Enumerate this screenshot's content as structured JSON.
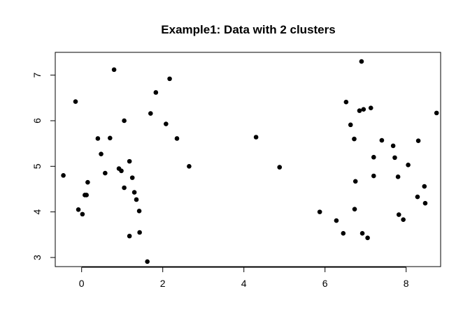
{
  "chart_data": {
    "type": "scatter",
    "title": "Example1: Data with 2 clusters",
    "xlabel": "",
    "ylabel": "",
    "xlim": [
      -0.65,
      8.85
    ],
    "ylim": [
      2.8,
      7.5
    ],
    "xticks": [
      0,
      2,
      4,
      6,
      8
    ],
    "yticks": [
      3,
      4,
      5,
      6,
      7
    ],
    "grid": false,
    "point_color": "#000000",
    "points": [
      {
        "x": -0.45,
        "y": 4.8
      },
      {
        "x": -0.15,
        "y": 6.42
      },
      {
        "x": -0.08,
        "y": 4.05
      },
      {
        "x": 0.02,
        "y": 3.95
      },
      {
        "x": 0.08,
        "y": 4.37
      },
      {
        "x": 0.12,
        "y": 4.37
      },
      {
        "x": 0.15,
        "y": 4.65
      },
      {
        "x": 0.4,
        "y": 5.61
      },
      {
        "x": 0.48,
        "y": 5.27
      },
      {
        "x": 0.58,
        "y": 4.85
      },
      {
        "x": 0.7,
        "y": 5.62
      },
      {
        "x": 0.8,
        "y": 7.12
      },
      {
        "x": 0.92,
        "y": 4.95
      },
      {
        "x": 0.98,
        "y": 4.9
      },
      {
        "x": 1.05,
        "y": 6.0
      },
      {
        "x": 1.05,
        "y": 4.53
      },
      {
        "x": 1.18,
        "y": 3.47
      },
      {
        "x": 1.18,
        "y": 5.11
      },
      {
        "x": 1.25,
        "y": 4.75
      },
      {
        "x": 1.3,
        "y": 4.43
      },
      {
        "x": 1.35,
        "y": 4.27
      },
      {
        "x": 1.42,
        "y": 4.02
      },
      {
        "x": 1.43,
        "y": 3.55
      },
      {
        "x": 1.62,
        "y": 2.91
      },
      {
        "x": 1.7,
        "y": 6.16
      },
      {
        "x": 1.83,
        "y": 6.62
      },
      {
        "x": 2.08,
        "y": 5.93
      },
      {
        "x": 2.17,
        "y": 6.92
      },
      {
        "x": 2.35,
        "y": 5.61
      },
      {
        "x": 2.65,
        "y": 5.0
      },
      {
        "x": 4.3,
        "y": 5.64
      },
      {
        "x": 4.88,
        "y": 4.98
      },
      {
        "x": 5.87,
        "y": 4.0
      },
      {
        "x": 6.28,
        "y": 3.81
      },
      {
        "x": 6.45,
        "y": 3.53
      },
      {
        "x": 6.52,
        "y": 6.41
      },
      {
        "x": 6.63,
        "y": 5.91
      },
      {
        "x": 6.72,
        "y": 5.6
      },
      {
        "x": 6.73,
        "y": 4.06
      },
      {
        "x": 6.75,
        "y": 4.67
      },
      {
        "x": 6.85,
        "y": 6.22
      },
      {
        "x": 6.9,
        "y": 7.3
      },
      {
        "x": 6.92,
        "y": 3.53
      },
      {
        "x": 6.95,
        "y": 6.25
      },
      {
        "x": 7.05,
        "y": 3.43
      },
      {
        "x": 7.13,
        "y": 6.28
      },
      {
        "x": 7.2,
        "y": 5.2
      },
      {
        "x": 7.2,
        "y": 4.79
      },
      {
        "x": 7.4,
        "y": 5.57
      },
      {
        "x": 7.68,
        "y": 5.45
      },
      {
        "x": 7.72,
        "y": 5.19
      },
      {
        "x": 7.8,
        "y": 4.77
      },
      {
        "x": 7.82,
        "y": 3.94
      },
      {
        "x": 7.93,
        "y": 3.83
      },
      {
        "x": 8.05,
        "y": 5.03
      },
      {
        "x": 8.28,
        "y": 4.33
      },
      {
        "x": 8.3,
        "y": 5.56
      },
      {
        "x": 8.45,
        "y": 4.56
      },
      {
        "x": 8.47,
        "y": 4.19
      },
      {
        "x": 8.75,
        "y": 6.17
      }
    ]
  }
}
